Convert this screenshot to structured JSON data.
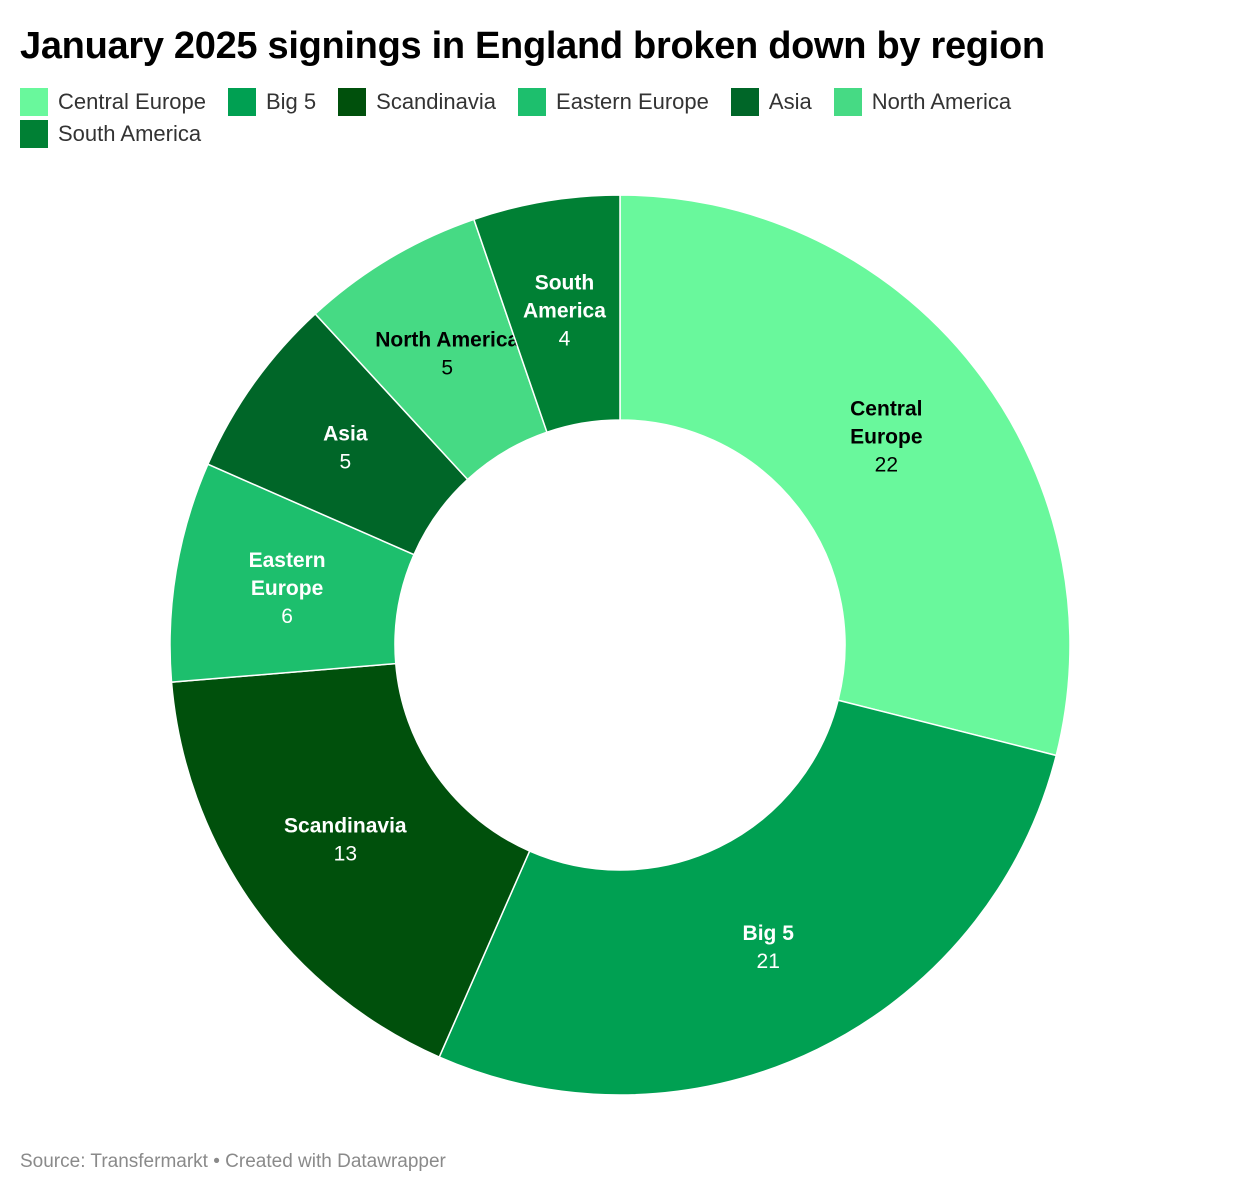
{
  "title": "January 2025 signings in England broken down by region",
  "footer": {
    "source": "Source: Transfermarkt",
    "separator": "•",
    "credit": "Created with Datawrapper"
  },
  "chart_data": {
    "type": "pie",
    "subtype": "donut",
    "title": "January 2025 signings in England broken down by region",
    "legend_position": "top-left",
    "categories": [
      "Central Europe",
      "Big 5",
      "Scandinavia",
      "Eastern Europe",
      "Asia",
      "North America",
      "South America"
    ],
    "values": [
      22,
      21,
      13,
      6,
      5,
      5,
      4
    ],
    "colors": [
      "#69f89c",
      "#00a052",
      "#00500c",
      "#1dbf6d",
      "#006628",
      "#46da84",
      "#008034"
    ],
    "label_lines": [
      [
        "Central",
        "Europe"
      ],
      [
        "Big 5"
      ],
      [
        "Scandinavia"
      ],
      [
        "Eastern",
        "Europe"
      ],
      [
        "Asia"
      ],
      [
        "North America"
      ],
      [
        "South",
        "America"
      ]
    ],
    "label_colors": [
      "#000000",
      "#ffffff",
      "#ffffff",
      "#ffffff",
      "#ffffff",
      "#000000",
      "#ffffff"
    ]
  }
}
